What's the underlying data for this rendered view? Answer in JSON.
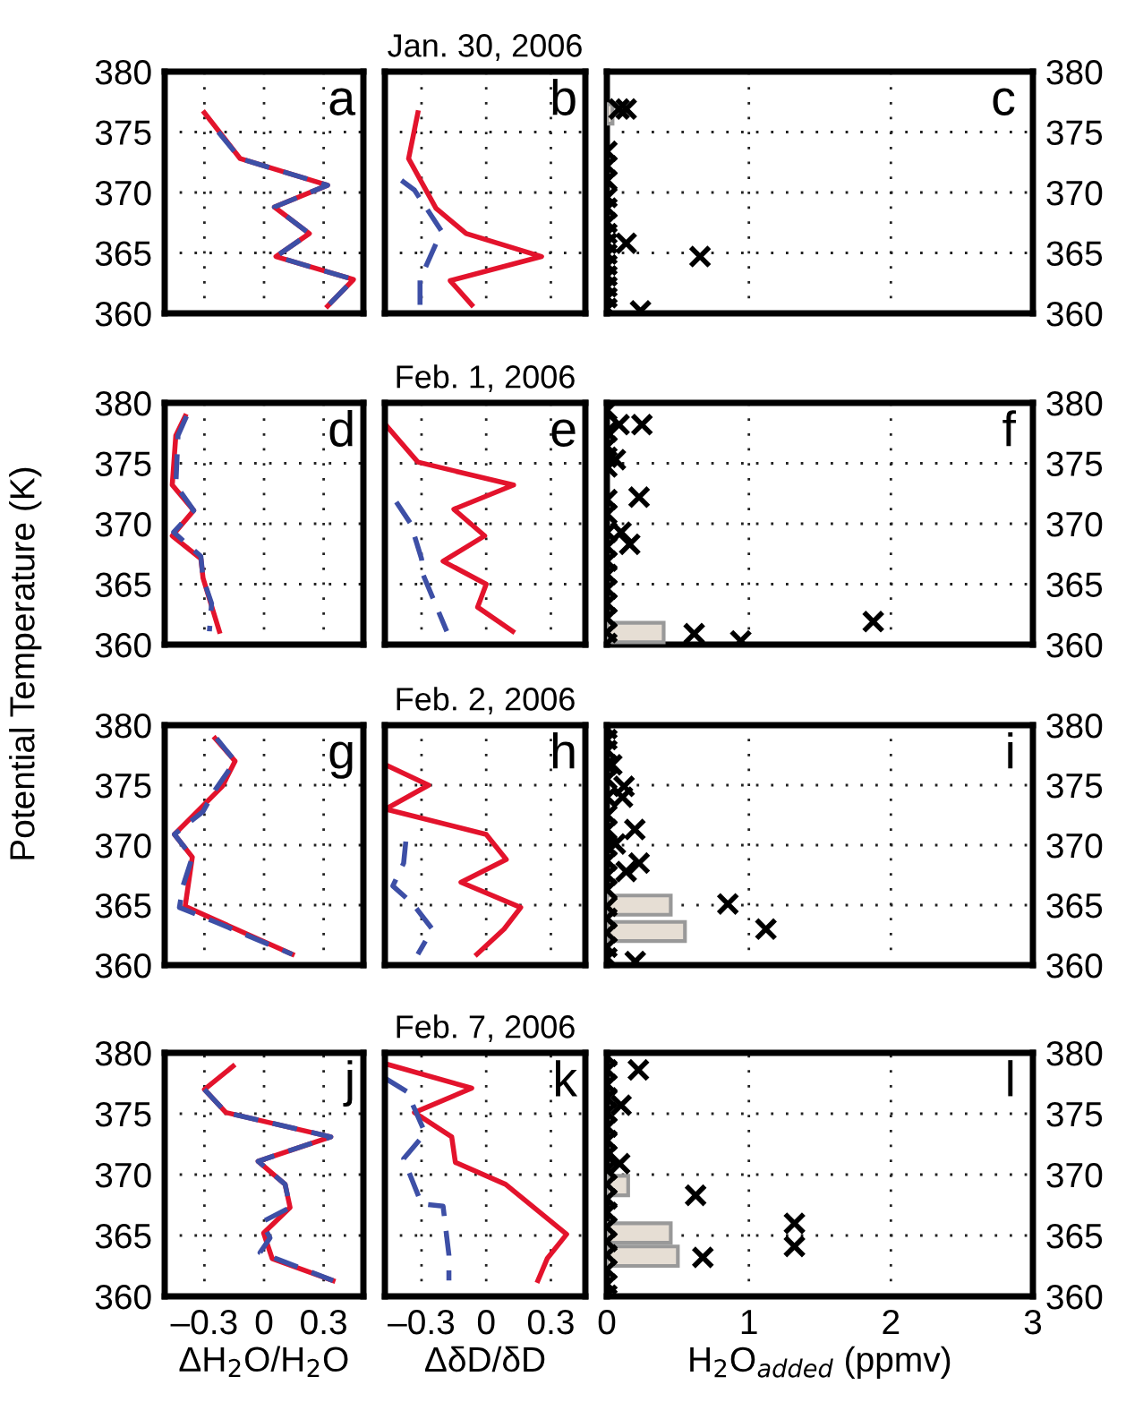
{
  "chart_data": [
    {
      "type": "line",
      "annotations": [
        "a"
      ],
      "xlim": [
        -0.5,
        0.5
      ],
      "xticks": [
        -0.3,
        0,
        0.3
      ],
      "ylim": [
        360,
        380
      ],
      "yticks": [
        360,
        365,
        370,
        375,
        380
      ],
      "grid": true,
      "tick_labels": "y",
      "series": [
        {
          "color": "#e3132c",
          "x": [
            -0.3,
            -0.12,
            0.32,
            0.052,
            0.228,
            0.06,
            0.45,
            0.32
          ],
          "values": [
            376.6,
            372.8,
            370.6,
            368.8,
            366.6,
            364.7,
            362.8,
            360.6
          ]
        },
        {
          "color": "#3d4fa6",
          "line_style": "dashed",
          "x": [
            -0.23,
            -0.12,
            0.32,
            0.052,
            0.228,
            0.06,
            0.45,
            0.32
          ],
          "values": [
            375.0,
            372.8,
            370.6,
            368.8,
            366.6,
            364.7,
            362.8,
            360.6
          ]
        }
      ]
    },
    {
      "type": "line",
      "title": "Jan. 30, 2006",
      "annotations": [
        "b"
      ],
      "xlim": [
        -0.47,
        0.46
      ],
      "xticks": [
        -0.3,
        0,
        0.3
      ],
      "ylim": [
        360,
        380
      ],
      "yticks": [
        360,
        365,
        370,
        375,
        380
      ],
      "grid": true,
      "tick_labels": false,
      "series": [
        {
          "color": "#e3132c",
          "x": [
            -0.317,
            -0.36,
            -0.233,
            -0.093,
            0.257,
            -0.167,
            -0.067
          ],
          "values": [
            376.6,
            372.8,
            368.7,
            366.6,
            364.7,
            362.7,
            360.7
          ]
        },
        {
          "color": "#3d4fa6",
          "line_style": "dashed",
          "x": [
            -0.393,
            -0.333,
            -0.207,
            -0.307,
            -0.307
          ],
          "values": [
            371.0,
            370.2,
            366.8,
            362.8,
            360.7
          ]
        }
      ]
    },
    {
      "type": "scatter",
      "orientation": "horizontal",
      "annotations": [
        "c"
      ],
      "xlim": [
        0,
        3
      ],
      "xticks": [
        0,
        1,
        2,
        3
      ],
      "ylim": [
        360,
        380
      ],
      "yticks": [
        360,
        365,
        370,
        375,
        380
      ],
      "grid": true,
      "tick_labels": "y",
      "series": [
        {
          "type": "bar",
          "color": "#e6ded4",
          "x": [
            376.5
          ],
          "values": [
            0.04
          ]
        },
        {
          "type": "scatter",
          "marker": "cross",
          "color": "#000000",
          "values": [
            0.086,
            0.136,
            0.656,
            0.237,
            0.136,
            0,
            0,
            0,
            0,
            0,
            0,
            0,
            0,
            0,
            0,
            0,
            0,
            0,
            0
          ],
          "x": [
            376.9,
            376.9,
            364.7,
            360.2,
            365.8,
            373.4,
            372.2,
            371.0,
            369.6,
            368.7,
            367.5,
            366.6,
            365.8,
            364.9,
            364.0,
            363.1,
            362.2,
            361.3,
            360.4
          ]
        }
      ]
    },
    {
      "type": "line",
      "annotations": [
        "d"
      ],
      "ylabel": "Potential Temperature (K)",
      "xlim": [
        -0.5,
        0.5
      ],
      "xticks": [
        -0.3,
        0,
        0.3
      ],
      "ylim": [
        360,
        380
      ],
      "yticks": [
        360,
        365,
        370,
        375,
        380
      ],
      "grid": true,
      "tick_labels": "y",
      "series": [
        {
          "color": "#e3132c",
          "x": [
            -0.397,
            -0.444,
            -0.462,
            -0.354,
            -0.462,
            -0.318,
            -0.307,
            -0.225
          ],
          "values": [
            378.9,
            377.3,
            373.2,
            371.1,
            369.0,
            367.1,
            365.5,
            361.1
          ]
        },
        {
          "color": "#3d4fa6",
          "line_style": "dashed",
          "x": [
            -0.39,
            -0.433,
            -0.444,
            -0.354,
            -0.455,
            -0.318,
            -0.307,
            -0.264,
            -0.275
          ],
          "values": [
            378.9,
            377.3,
            373.2,
            371.1,
            369.3,
            367.3,
            365.5,
            363.4,
            361.1
          ]
        }
      ]
    },
    {
      "type": "line",
      "title": "Feb. 1, 2006",
      "annotations": [
        "e"
      ],
      "xlim": [
        -0.47,
        0.46
      ],
      "xticks": [
        -0.3,
        0,
        0.3
      ],
      "ylim": [
        360,
        380
      ],
      "yticks": [
        360,
        365,
        370,
        375,
        380
      ],
      "grid": true,
      "tick_labels": false,
      "series": [
        {
          "color": "#e3132c",
          "x": [
            -0.467,
            -0.317,
            0.127,
            -0.15,
            -0.007,
            -0.2,
            0,
            -0.04,
            0.123
          ],
          "values": [
            378.2,
            375.1,
            373.2,
            371.2,
            369.0,
            366.9,
            365.0,
            363.1,
            361.1
          ]
        },
        {
          "color": "#3d4fa6",
          "line_style": "dashed",
          "x": [
            -0.417,
            -0.35,
            -0.3,
            -0.293,
            -0.183
          ],
          "values": [
            371.8,
            370.0,
            367.1,
            365.8,
            361.1
          ]
        }
      ]
    },
    {
      "type": "scatter",
      "orientation": "horizontal",
      "annotations": [
        "f"
      ],
      "xlim": [
        0,
        3
      ],
      "xticks": [
        0,
        1,
        2,
        3
      ],
      "ylim": [
        360,
        380
      ],
      "yticks": [
        360,
        365,
        370,
        375,
        380
      ],
      "grid": true,
      "tick_labels": "y",
      "series": [
        {
          "type": "bar",
          "color": "#e6ded4",
          "x": [
            361.0
          ],
          "values": [
            0.4
          ]
        },
        {
          "type": "scatter",
          "marker": "cross",
          "color": "#000000",
          "values": [
            0.247,
            0.086,
            0.06,
            0.227,
            0.161,
            0.1,
            0.615,
            0.943,
            1.876,
            0,
            0,
            0,
            0,
            0,
            0,
            0,
            0,
            0,
            0,
            0,
            0,
            0,
            0,
            0,
            0
          ],
          "x": [
            378.2,
            378.2,
            375.3,
            372.2,
            368.3,
            369.3,
            360.9,
            360.3,
            361.9,
            379.4,
            377.6,
            376.4,
            375.5,
            374.7,
            372.0,
            370.8,
            369.3,
            368.1,
            366.9,
            365.8,
            364.6,
            363.4,
            362.2,
            361.0,
            360.1
          ]
        }
      ]
    },
    {
      "type": "line",
      "annotations": [
        "g"
      ],
      "xlim": [
        -0.5,
        0.5
      ],
      "xticks": [
        -0.3,
        0,
        0.3
      ],
      "ylim": [
        360,
        380
      ],
      "yticks": [
        360,
        365,
        370,
        375,
        380
      ],
      "grid": true,
      "tick_labels": "y",
      "series": [
        {
          "color": "#e3132c",
          "x": [
            -0.246,
            -0.146,
            -0.21,
            -0.451,
            -0.361,
            -0.397,
            0.142
          ],
          "values": [
            378.9,
            377.0,
            374.9,
            370.9,
            369.0,
            364.9,
            360.9
          ]
        },
        {
          "color": "#3d4fa6",
          "line_style": "dashed",
          "x": [
            -0.239,
            -0.146,
            -0.246,
            -0.307,
            -0.451,
            -0.361,
            -0.408,
            -0.426,
            -0.246,
            0.142
          ],
          "values": [
            378.9,
            377.0,
            374.6,
            372.8,
            370.9,
            369.0,
            366.6,
            364.8,
            363.6,
            360.9
          ]
        }
      ]
    },
    {
      "type": "line",
      "title": "Feb. 2, 2006",
      "annotations": [
        "h"
      ],
      "xlim": [
        -0.47,
        0.46
      ],
      "xticks": [
        -0.3,
        0,
        0.3
      ],
      "ylim": [
        360,
        380
      ],
      "yticks": [
        360,
        365,
        370,
        375,
        380
      ],
      "grid": true,
      "tick_labels": false,
      "series": [
        {
          "color": "#e3132c",
          "x": [
            -0.467,
            -0.267,
            -0.467,
            0,
            0.093,
            -0.117,
            0.16,
            0.083,
            -0.043
          ],
          "values": [
            376.7,
            375.0,
            373.0,
            370.9,
            368.8,
            366.9,
            364.8,
            363.0,
            360.9
          ]
        },
        {
          "color": "#3d4fa6",
          "line_style": "dashed",
          "x": [
            -0.373,
            -0.383,
            -0.433,
            -0.34,
            -0.25,
            -0.317
          ],
          "values": [
            370.3,
            368.5,
            366.6,
            365.1,
            363.0,
            360.9
          ]
        }
      ]
    },
    {
      "type": "scatter",
      "orientation": "horizontal",
      "annotations": [
        "i"
      ],
      "xlim": [
        0,
        3
      ],
      "xticks": [
        0,
        1,
        2,
        3
      ],
      "ylim": [
        360,
        380
      ],
      "yticks": [
        360,
        365,
        370,
        375,
        380
      ],
      "grid": true,
      "tick_labels": "y",
      "series": [
        {
          "type": "bar",
          "color": "#e6ded4",
          "x": [
            365.0,
            362.8
          ],
          "values": [
            0.45,
            0.55
          ]
        },
        {
          "type": "scatter",
          "marker": "cross",
          "color": "#000000",
          "values": [
            0.852,
            1.12,
            0.2,
            0.121,
            0.11,
            0.197,
            0.227,
            0.136,
            0.06,
            0.035,
            0,
            0,
            0,
            0,
            0,
            0,
            0,
            0,
            0,
            0,
            0,
            0,
            0,
            0,
            0,
            0,
            0
          ],
          "x": [
            365.1,
            363.0,
            360.3,
            374.9,
            374.0,
            371.3,
            368.5,
            367.8,
            370.1,
            376.7,
            379.7,
            378.8,
            377.9,
            376.7,
            375.5,
            374.0,
            372.5,
            371.3,
            369.9,
            368.7,
            367.5,
            366.3,
            364.9,
            363.9,
            362.7,
            361.5,
            360.6
          ]
        }
      ]
    },
    {
      "type": "line",
      "annotations": [
        "j"
      ],
      "xlabel": "ΔH$_{2}$O/H$_{2}$O",
      "xlim": [
        -0.5,
        0.5
      ],
      "xticks": [
        {
          "value": -0.3,
          "label": "–0.3"
        },
        0,
        0.3
      ],
      "ylim": [
        360,
        380
      ],
      "yticks": [
        360,
        365,
        370,
        375,
        380
      ],
      "grid": true,
      "series": [
        {
          "color": "#e3132c",
          "x": [
            -0.156,
            -0.3,
            -0.192,
            0.336,
            -0.03,
            0.106,
            0.131,
            -0.002,
            0.041,
            0.347
          ],
          "values": [
            378.9,
            377.0,
            375.1,
            373.1,
            371.1,
            369.2,
            367.3,
            365.2,
            363.1,
            361.3
          ]
        },
        {
          "color": "#3d4fa6",
          "line_style": "dashed",
          "x": [
            -0.3,
            -0.192,
            0.336,
            -0.03,
            0.106,
            0.131,
            -0.012,
            0.03,
            -0.02,
            0.347
          ],
          "values": [
            377.0,
            375.1,
            373.1,
            371.1,
            369.2,
            367.3,
            366.1,
            364.8,
            363.6,
            361.3
          ]
        }
      ]
    },
    {
      "type": "line",
      "title": "Feb. 7, 2006",
      "annotations": [
        "k"
      ],
      "xlabel": "ΔδD/δD",
      "xlim": [
        -0.47,
        0.46
      ],
      "xticks": [
        {
          "value": -0.3,
          "label": "–0.3"
        },
        0,
        0.3
      ],
      "ylim": [
        360,
        380
      ],
      "yticks": [
        360,
        365,
        370,
        375,
        380
      ],
      "grid": true,
      "tick_labels": "x",
      "series": [
        {
          "color": "#e3132c",
          "x": [
            -0.467,
            -0.067,
            -0.333,
            -0.16,
            -0.143,
            0.09,
            0.373,
            0.283,
            0.24
          ],
          "values": [
            379.1,
            377.1,
            375.1,
            373.1,
            371.0,
            369.2,
            365.1,
            363.1,
            361.3
          ]
        },
        {
          "color": "#3d4fa6",
          "line_style": "dashed",
          "x": [
            -0.467,
            -0.367,
            -0.283,
            -0.383,
            -0.3,
            -0.2,
            -0.173,
            -0.173
          ],
          "values": [
            377.9,
            376.8,
            373.4,
            371.3,
            367.6,
            367.4,
            363.4,
            361.3
          ]
        }
      ]
    },
    {
      "type": "scatter",
      "orientation": "horizontal",
      "annotations": [
        "l"
      ],
      "xlabel": "H$_{2}$O$_{added}$ (ppmv)",
      "xlim": [
        0,
        3
      ],
      "xticks": [
        0,
        1,
        2,
        3
      ],
      "ylim": [
        360,
        380
      ],
      "yticks": [
        360,
        365,
        370,
        375,
        380
      ],
      "grid": true,
      "series": [
        {
          "type": "bar",
          "color": "#e6ded4",
          "x": [
            369.1,
            365.2,
            363.3
          ],
          "values": [
            0.15,
            0.45,
            0.5
          ]
        },
        {
          "type": "scatter",
          "marker": "cross",
          "color": "#000000",
          "values": [
            0.222,
            0.1,
            0.09,
            0.625,
            1.321,
            1.321,
            0.676,
            0,
            0,
            0,
            0,
            0,
            0,
            0,
            0,
            0,
            0,
            0,
            0,
            0,
            0,
            0,
            0,
            0,
            0
          ],
          "x": [
            378.6,
            375.7,
            370.9,
            368.3,
            366.0,
            364.1,
            363.2,
            379.7,
            378.6,
            377.4,
            376.3,
            375.1,
            373.9,
            372.8,
            371.6,
            370.4,
            369.2,
            368.0,
            366.9,
            365.7,
            364.5,
            363.4,
            362.2,
            361.0,
            360.1
          ]
        }
      ]
    }
  ]
}
